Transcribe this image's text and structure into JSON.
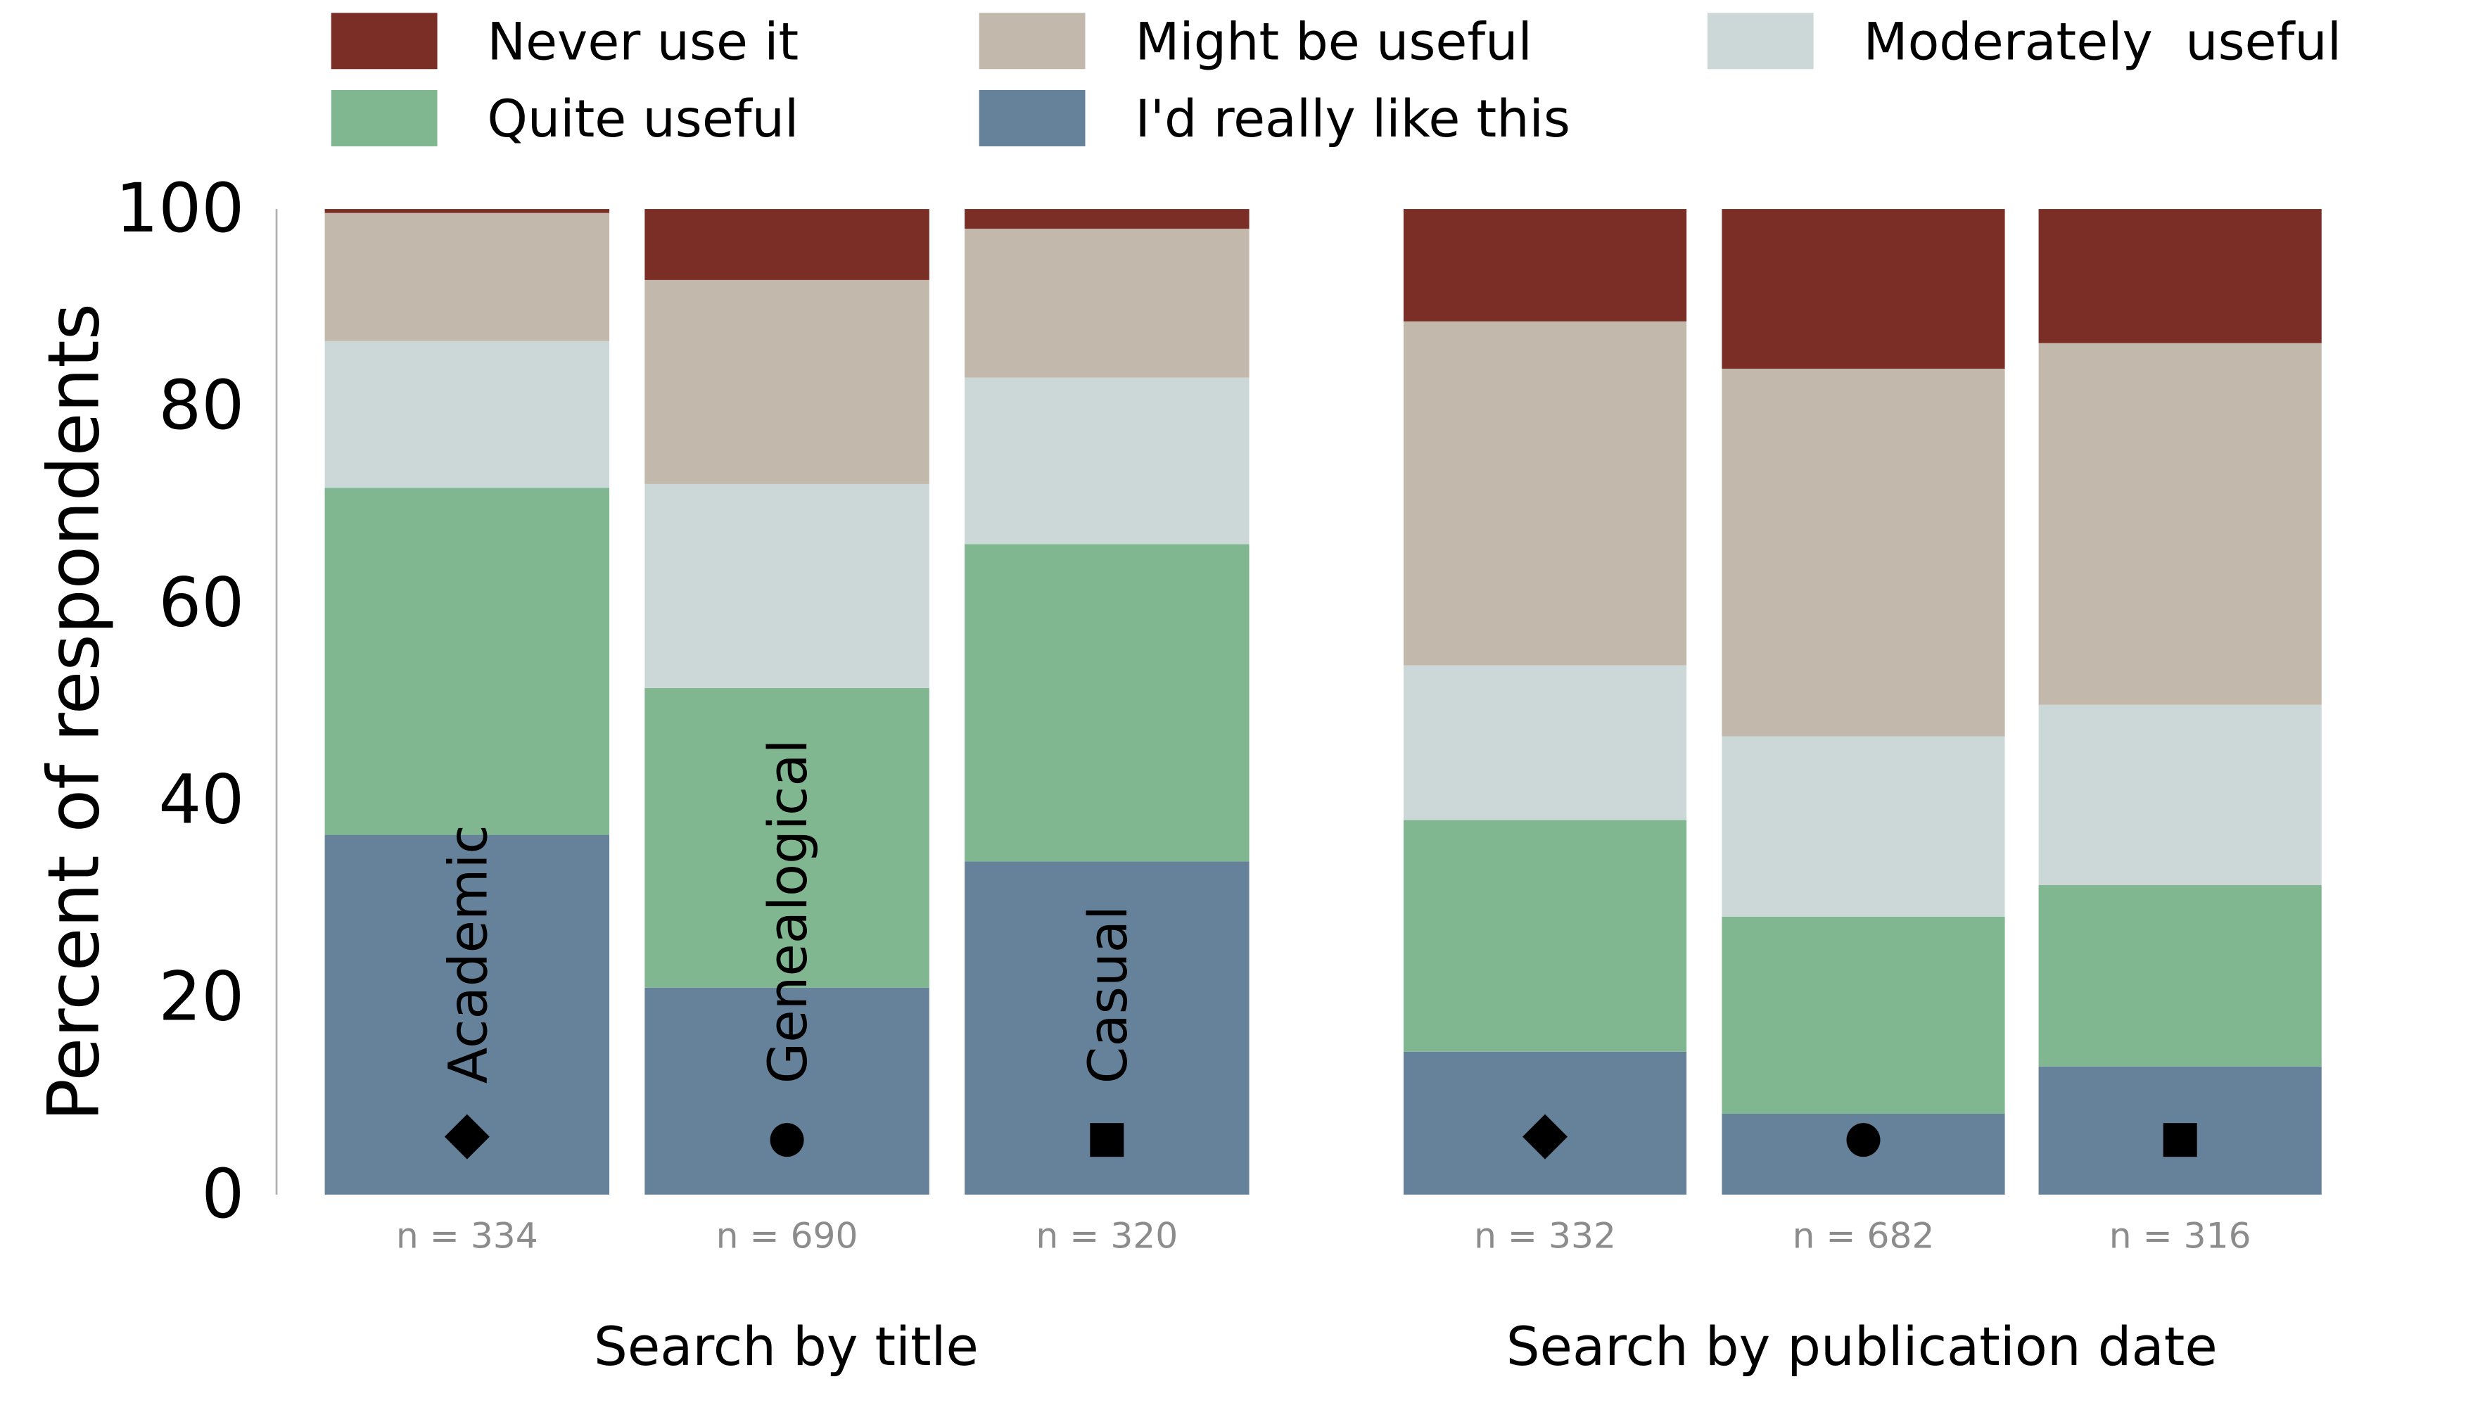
{
  "chart_data": {
    "type": "bar",
    "stacked": true,
    "ylabel": "Percent of respondents",
    "ylim": [
      0,
      100
    ],
    "yticks": [
      0,
      20,
      40,
      60,
      80,
      100
    ],
    "grid": false,
    "legend_position": "top",
    "legend": [
      {
        "name": "Never use it",
        "color": "#7a2e25"
      },
      {
        "name": "Might be useful",
        "color": "#c2b8ab"
      },
      {
        "name": "Moderately  useful",
        "color": "#ccd8d8"
      },
      {
        "name": "Quite useful",
        "color": "#80b690"
      },
      {
        "name": "I'd really like this",
        "color": "#66829b"
      }
    ],
    "stack_order_bottom_to_top": [
      "I'd really like this",
      "Quite useful",
      "Moderately  useful",
      "Might be useful",
      "Never use it"
    ],
    "groups": [
      {
        "label": "Search by title",
        "bars": [
          {
            "category": "Academic",
            "marker": "diamond",
            "n_label": "n = 334",
            "show_category_label": true,
            "values": {
              "I'd really like this": 36.5,
              "Quite useful": 35.2,
              "Moderately  useful": 14.9,
              "Might be useful": 13.0,
              "Never use it": 0.4
            }
          },
          {
            "category": "Genealogical",
            "marker": "circle",
            "n_label": "n = 690",
            "show_category_label": true,
            "values": {
              "I'd really like this": 21.0,
              "Quite useful": 30.4,
              "Moderately  useful": 20.7,
              "Might be useful": 20.7,
              "Never use it": 7.2
            }
          },
          {
            "category": "Casual",
            "marker": "square",
            "n_label": "n = 320",
            "show_category_label": true,
            "values": {
              "I'd really like this": 33.8,
              "Quite useful": 32.2,
              "Moderately  useful": 16.9,
              "Might be useful": 15.1,
              "Never use it": 2.0
            }
          }
        ]
      },
      {
        "label": "Search by publication date",
        "bars": [
          {
            "category": "Academic",
            "marker": "diamond",
            "n_label": "n = 332",
            "show_category_label": false,
            "values": {
              "I'd really like this": 14.5,
              "Quite useful": 23.5,
              "Moderately  useful": 15.7,
              "Might be useful": 34.9,
              "Never use it": 11.4
            }
          },
          {
            "category": "Genealogical",
            "marker": "circle",
            "n_label": "n = 682",
            "show_category_label": false,
            "values": {
              "I'd really like this": 8.2,
              "Quite useful": 20.0,
              "Moderately  useful": 18.3,
              "Might be useful": 37.3,
              "Never use it": 16.2
            }
          },
          {
            "category": "Casual",
            "marker": "square",
            "n_label": "n = 316",
            "show_category_label": false,
            "values": {
              "I'd really like this": 13.0,
              "Quite useful": 18.4,
              "Moderately  useful": 18.3,
              "Might be useful": 36.7,
              "Never use it": 13.6
            }
          }
        ]
      }
    ]
  }
}
